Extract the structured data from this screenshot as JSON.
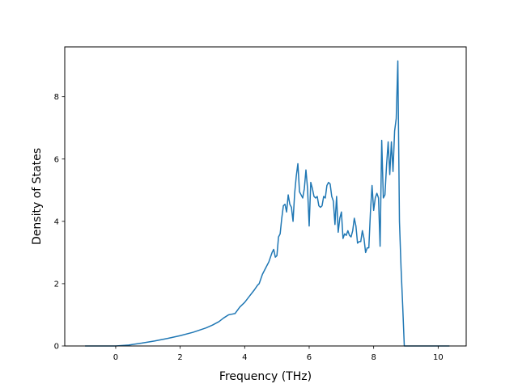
{
  "chart_data": {
    "type": "line",
    "title": "",
    "xlabel": "Frequency (THz)",
    "ylabel": "Density of States",
    "xlim": [
      -1.58,
      10.87
    ],
    "ylim": [
      0,
      9.6
    ],
    "xticks": [
      0,
      2,
      4,
      6,
      8,
      10
    ],
    "yticks": [
      0,
      2,
      4,
      6,
      8
    ],
    "grid": false,
    "series_color": "#1f77b4",
    "series": [
      {
        "x": [
          -0.95,
          -0.5,
          0.0,
          0.4,
          0.8,
          1.2,
          1.6,
          2.0,
          2.4,
          2.8,
          3.0,
          3.2,
          3.35,
          3.5,
          3.6,
          3.7,
          3.85,
          4.0,
          4.15,
          4.3,
          4.4,
          4.45,
          4.55,
          4.65,
          4.75,
          4.8,
          4.85,
          4.9,
          4.95,
          5.0,
          5.05,
          5.1,
          5.15,
          5.2,
          5.25,
          5.3,
          5.35,
          5.4,
          5.45,
          5.5,
          5.55,
          5.6,
          5.65,
          5.7,
          5.75,
          5.8,
          5.85,
          5.9,
          5.95,
          6.0,
          6.05,
          6.1,
          6.15,
          6.2,
          6.25,
          6.3,
          6.35,
          6.4,
          6.45,
          6.5,
          6.55,
          6.6,
          6.65,
          6.7,
          6.75,
          6.8,
          6.85,
          6.9,
          6.95,
          7.0,
          7.05,
          7.1,
          7.15,
          7.2,
          7.25,
          7.3,
          7.35,
          7.4,
          7.45,
          7.5,
          7.55,
          7.6,
          7.65,
          7.7,
          7.75,
          7.8,
          7.85,
          7.9,
          7.95,
          8.0,
          8.05,
          8.1,
          8.15,
          8.2,
          8.25,
          8.3,
          8.35,
          8.4,
          8.45,
          8.5,
          8.55,
          8.6,
          8.65,
          8.7,
          8.75,
          8.8,
          8.85,
          8.9,
          8.95,
          9.0,
          9.05,
          9.1,
          9.15,
          9.2,
          9.3,
          9.4,
          9.5,
          10.35
        ],
        "y": [
          0,
          0,
          0,
          0.03,
          0.09,
          0.16,
          0.24,
          0.33,
          0.44,
          0.58,
          0.67,
          0.78,
          0.9,
          1.0,
          1.02,
          1.04,
          1.25,
          1.4,
          1.6,
          1.8,
          1.95,
          2.0,
          2.3,
          2.5,
          2.7,
          2.85,
          3.0,
          3.1,
          2.85,
          2.9,
          3.5,
          3.6,
          4.1,
          4.5,
          4.55,
          4.3,
          4.85,
          4.55,
          4.45,
          4.0,
          4.9,
          5.45,
          5.85,
          4.95,
          4.85,
          4.75,
          5.05,
          5.65,
          5.05,
          3.85,
          5.25,
          5.05,
          4.8,
          4.75,
          4.8,
          4.5,
          4.45,
          4.5,
          4.8,
          4.75,
          5.15,
          5.25,
          5.2,
          4.8,
          4.65,
          3.9,
          4.8,
          3.65,
          4.1,
          4.3,
          3.45,
          3.6,
          3.55,
          3.7,
          3.55,
          3.5,
          3.7,
          4.1,
          3.85,
          3.3,
          3.35,
          3.35,
          3.7,
          3.45,
          3.0,
          3.15,
          3.15,
          4.3,
          5.15,
          4.35,
          4.75,
          4.9,
          4.75,
          3.2,
          6.6,
          4.75,
          4.85,
          5.8,
          6.55,
          5.5,
          6.55,
          5.6,
          6.9,
          7.3,
          9.15,
          4.0,
          2.5,
          1.3,
          0.0,
          0,
          0,
          0,
          0,
          0,
          0,
          0,
          0,
          0
        ]
      }
    ]
  }
}
